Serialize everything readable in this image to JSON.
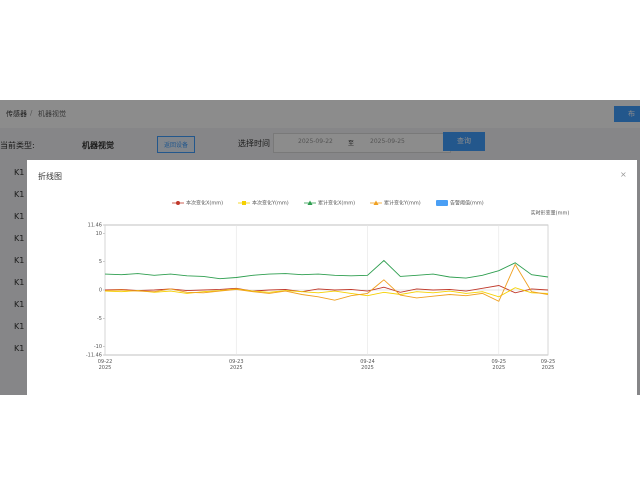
{
  "breadcrumb": [
    "传感器",
    "机器视觉"
  ],
  "top_button": "布",
  "filter": {
    "type_label": "当前类型:",
    "type_value": "机器视觉",
    "back_button": "返回设备",
    "time_label": "选择时间",
    "start": "2025-09-22",
    "to": "至",
    "end": "2025-09-25",
    "query": "查询"
  },
  "list": [
    "K1",
    "K1",
    "K1",
    "K1",
    "K1",
    "K1",
    "K1",
    "K1",
    "K1"
  ],
  "modal": {
    "title": "折线图",
    "close": "×"
  },
  "chart_data": {
    "type": "line",
    "y_label": "实时形变量(mm)",
    "x": [
      "2025-09-22 00:00",
      "2025-09-22 03:00",
      "2025-09-22 06:00",
      "2025-09-22 09:00",
      "2025-09-22 12:00",
      "2025-09-22 15:00",
      "2025-09-22 18:00",
      "2025-09-22 21:00",
      "2025-09-23 00:00",
      "2025-09-23 03:00",
      "2025-09-23 06:00",
      "2025-09-23 09:00",
      "2025-09-23 12:00",
      "2025-09-23 15:00",
      "2025-09-23 18:00",
      "2025-09-23 21:00",
      "2025-09-24 00:00",
      "2025-09-24 03:00",
      "2025-09-24 06:00",
      "2025-09-24 09:00",
      "2025-09-24 12:00",
      "2025-09-24 15:00",
      "2025-09-24 18:00",
      "2025-09-24 21:00",
      "2025-09-25 00:00",
      "2025-09-25 03:00",
      "2025-09-25 06:00",
      "2025-09-25 09:00"
    ],
    "series": [
      {
        "name": "本次变化X(mm)",
        "color": "#c0392b",
        "marker": "circle",
        "values": [
          0,
          0.1,
          -0.1,
          0,
          0.2,
          -0.1,
          0,
          0.1,
          0.3,
          -0.2,
          0,
          0.1,
          -0.3,
          0.2,
          0,
          0.1,
          -0.2,
          0.5,
          -0.4,
          0.2,
          0,
          0.1,
          -0.2,
          0.3,
          0.8,
          -0.5,
          0.2,
          0
        ]
      },
      {
        "name": "本次变化Y(mm)",
        "color": "#f5d000",
        "marker": "square",
        "values": [
          -0.2,
          -0.3,
          -0.1,
          -0.4,
          -0.2,
          -0.6,
          -0.3,
          -0.1,
          0.2,
          -0.2,
          -0.4,
          -0.1,
          -0.3,
          -0.5,
          -0.2,
          -0.6,
          -1.0,
          -0.4,
          -0.8,
          -0.3,
          -0.5,
          -0.2,
          -0.6,
          -0.3,
          -1.2,
          0.4,
          -0.5,
          -0.6
        ]
      },
      {
        "name": "累计变化X(mm)",
        "color": "#2e9e4f",
        "marker": "triangle",
        "values": [
          2.8,
          2.7,
          2.9,
          2.6,
          2.8,
          2.5,
          2.4,
          2.0,
          2.2,
          2.6,
          2.8,
          2.9,
          2.7,
          2.8,
          2.6,
          2.5,
          2.6,
          5.2,
          2.4,
          2.6,
          2.8,
          2.3,
          2.1,
          2.6,
          3.4,
          4.8,
          2.7,
          2.3
        ]
      },
      {
        "name": "累计变化Y(mm)",
        "color": "#f0a020",
        "marker": "triangle",
        "values": [
          -0.1,
          0,
          -0.2,
          -0.3,
          0.2,
          -0.4,
          -0.5,
          -0.2,
          0.1,
          -0.3,
          -0.6,
          -0.2,
          -0.8,
          -1.2,
          -1.8,
          -1.0,
          -0.6,
          1.8,
          -0.9,
          -1.4,
          -1.1,
          -0.8,
          -1.0,
          -0.6,
          -2.0,
          4.5,
          -0.3,
          -0.8
        ]
      }
    ],
    "legend_extra": {
      "name": "告警阈值(mm)",
      "color": "#4a9ff5"
    },
    "xlim": [
      "2025-09-22 00:00",
      "2025-09-25 09:00"
    ],
    "xticks": [
      {
        "value": "2025-09-22 00:00",
        "label": "09-22\n2025"
      },
      {
        "value": "2025-09-23 00:00",
        "label": "09-23\n2025"
      },
      {
        "value": "2025-09-24 00:00",
        "label": "09-24\n2025"
      },
      {
        "value": "2025-09-25 00:00",
        "label": "09-25\n2025"
      },
      {
        "value": "2025-09-25 09:00",
        "label": "09-25\n2025"
      }
    ],
    "ylim": [
      -11.46,
      11.46
    ],
    "yticks": [
      -11.46,
      -10,
      -5,
      0,
      5,
      10,
      11.46
    ],
    "grid": true
  }
}
